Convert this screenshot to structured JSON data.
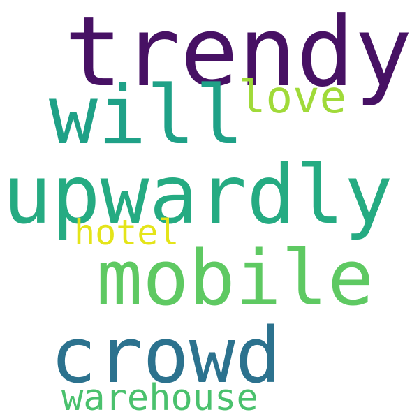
{
  "words": [
    {
      "text": "trendy",
      "color": "#471164"
    },
    {
      "text": "will",
      "color": "#1fa187"
    },
    {
      "text": "love",
      "color": "#a0da39"
    },
    {
      "text": "upwardly",
      "color": "#25ab82"
    },
    {
      "text": "hotel",
      "color": "#e4e419"
    },
    {
      "text": "mobile",
      "color": "#5ec962"
    },
    {
      "text": "crowd",
      "color": "#2c728e"
    },
    {
      "text": "warehouse",
      "color": "#4ac16d"
    }
  ]
}
